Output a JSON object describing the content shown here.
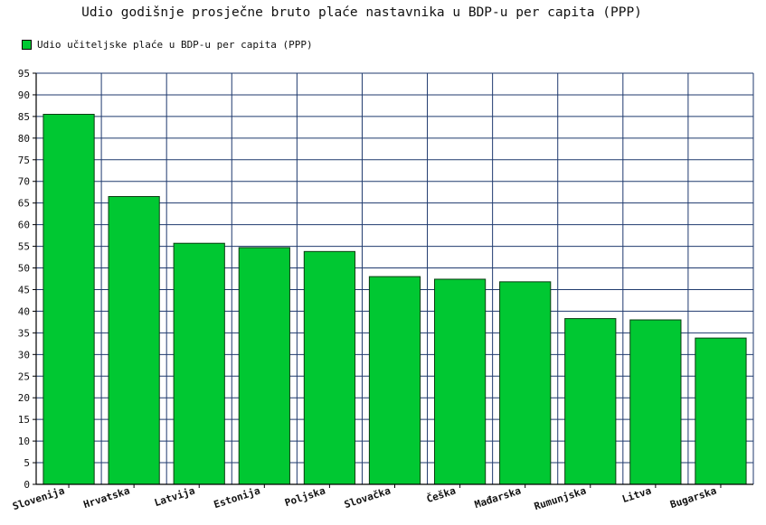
{
  "chart_data": {
    "type": "bar",
    "title": "Udio godišnje prosječne bruto plaće nastavnika u BDP-u per capita (PPP)",
    "legend": "top-left",
    "grid": true,
    "ylim": [
      0,
      95
    ],
    "yticks": [
      0,
      5,
      10,
      15,
      20,
      25,
      30,
      35,
      40,
      45,
      50,
      55,
      60,
      65,
      70,
      75,
      80,
      85,
      90,
      95
    ],
    "categories": [
      "Slovenija",
      "Hrvatska",
      "Latvija",
      "Estonija",
      "Poljska",
      "Slovačka",
      "Češka",
      "Mađarska",
      "Rumunjska",
      "Litva",
      "Bugarska"
    ],
    "series": [
      {
        "name": "Udio učiteljske plaće u BDP-u per capita (PPP)",
        "color": "#00c832",
        "values": [
          85.5,
          66.5,
          55.7,
          54.7,
          53.8,
          48.0,
          47.4,
          46.8,
          38.3,
          38.0,
          33.8
        ]
      }
    ]
  }
}
